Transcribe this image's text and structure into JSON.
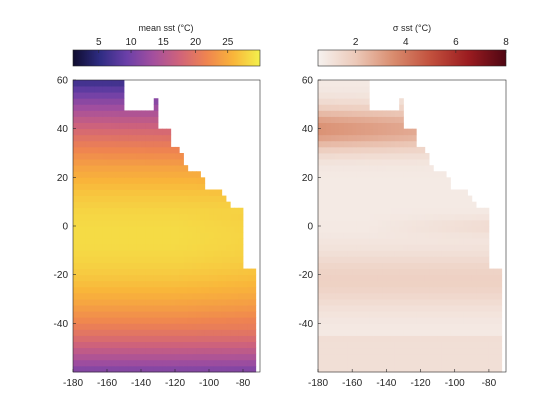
{
  "chart_data": [
    {
      "type": "heatmap",
      "title": "",
      "colorbar": {
        "label": "mean sst (°C)",
        "range": [
          1,
          30
        ],
        "ticks": [
          5,
          10,
          15,
          20,
          25
        ],
        "colormap": [
          "#0f0c2e",
          "#2e2c82",
          "#6a3fa8",
          "#a34f9e",
          "#d0637a",
          "#ef8450",
          "#f9b53a",
          "#f3f14c"
        ]
      },
      "x": {
        "range": [
          -180,
          -70
        ],
        "ticks": [
          -180,
          -160,
          -140,
          -120,
          -100,
          -80
        ],
        "label": ""
      },
      "y": {
        "range": [
          -60,
          60
        ],
        "ticks": [
          -40,
          -20,
          0,
          20,
          40,
          60
        ],
        "label": ""
      },
      "land_color": "#ffffff",
      "values_summary": "mean sea surface temperature, eastern Pacific Ocean; warmest (~28 °C) near the equator in the west, coldest (~2 °C) toward 60°N and 60°S"
    },
    {
      "type": "heatmap",
      "title": "",
      "colorbar": {
        "label": "σ sst (°C)",
        "range": [
          0.5,
          8
        ],
        "ticks": [
          2,
          4,
          6,
          8
        ],
        "colormap": [
          "#f6f2ef",
          "#ecc9b9",
          "#d98c6e",
          "#c2503d",
          "#9b1c20",
          "#4f0613"
        ]
      },
      "x": {
        "range": [
          -180,
          -70
        ],
        "ticks": [
          -180,
          -160,
          -140,
          -120,
          -100,
          -80
        ],
        "label": ""
      },
      "y": {
        "range": [
          -60,
          60
        ],
        "ticks": [
          -40,
          -20,
          0,
          20,
          40,
          60
        ],
        "label": ""
      },
      "land_color": "#ffffff",
      "values_summary": "standard deviation of sea surface temperature; ~1 °C in the tropics, ~3–4 °C around 40°N, up to ~8 °C in coastal northern waters"
    }
  ]
}
